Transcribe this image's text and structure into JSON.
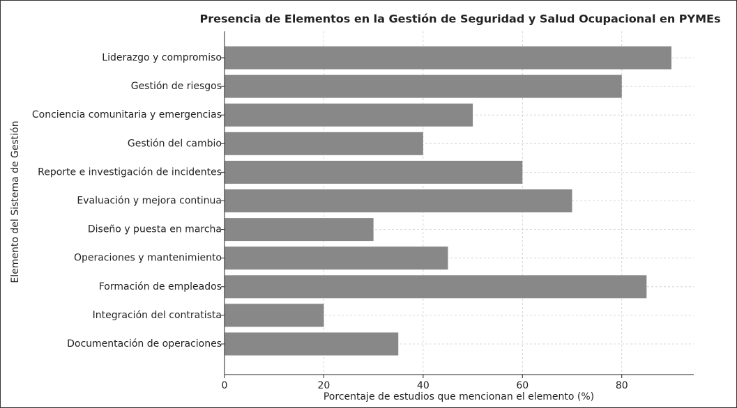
{
  "chart_data": {
    "type": "barh",
    "title": "Presencia de Elementos en la Gestión de Seguridad y Salud Ocupacional en PYMEs",
    "x_label": "Porcentaje de estudios que mencionan el elemento (%)",
    "y_label": "Elemento del Sistema de Gestión",
    "categories": [
      "Liderazgo y compromiso",
      "Gestión de riesgos",
      "Conciencia comunitaria y emergencias",
      "Gestión del cambio",
      "Reporte e investigación de incidentes",
      "Evaluación y mejora continua",
      "Diseño y puesta en marcha",
      "Operaciones y mantenimiento",
      "Formación de empleados",
      "Integración del contratista",
      "Documentación de operaciones"
    ],
    "values": [
      90,
      80,
      50,
      40,
      60,
      70,
      30,
      45,
      85,
      20,
      35
    ],
    "color": "#888888",
    "xlim": [
      0,
      94.5
    ],
    "xticks": [
      0,
      20,
      40,
      60,
      80
    ],
    "grid": true
  }
}
